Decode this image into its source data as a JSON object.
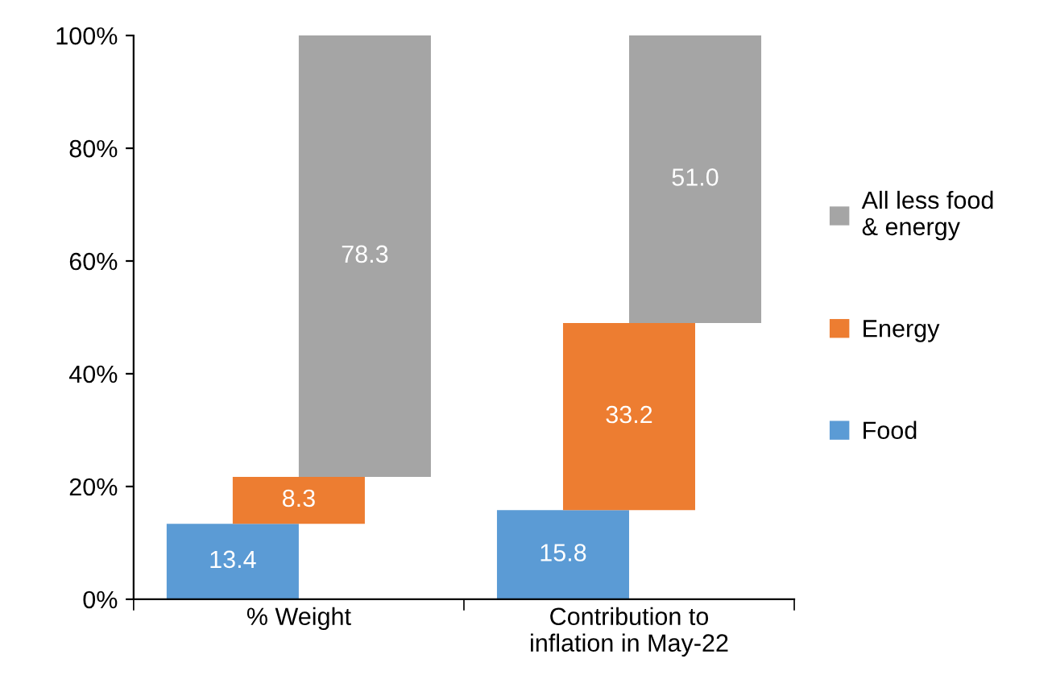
{
  "chart_data": {
    "type": "bar",
    "categories": [
      "% Weight",
      "Contribution to\ninflation in May-22"
    ],
    "series": [
      {
        "name": "Food",
        "color": "#5b9bd5",
        "values": [
          13.4,
          15.8
        ],
        "base": [
          0,
          0
        ]
      },
      {
        "name": "Energy",
        "color": "#ed7d31",
        "values": [
          8.3,
          33.2
        ],
        "base": [
          13.4,
          15.8
        ]
      },
      {
        "name": "All less food\n& energy",
        "color": "#a5a5a5",
        "values": [
          78.3,
          51.0
        ],
        "value_labels": [
          "78.3",
          "51.0"
        ],
        "base": [
          21.7,
          49.0
        ]
      }
    ],
    "ylim": [
      0,
      100
    ],
    "yticks": [
      {
        "value": 0,
        "label": "0%"
      },
      {
        "value": 20,
        "label": "20%"
      },
      {
        "value": 40,
        "label": "40%"
      },
      {
        "value": 60,
        "label": "60%"
      },
      {
        "value": 80,
        "label": "80%"
      },
      {
        "value": 100,
        "label": "100%"
      }
    ],
    "data_labels": true,
    "grid": false,
    "legend": "right"
  }
}
